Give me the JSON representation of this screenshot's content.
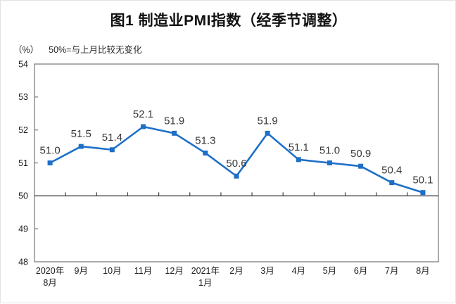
{
  "page": {
    "title": "图1 制造业PMI指数（经季节调整）"
  },
  "axis_note": {
    "unit": "（%）",
    "reference": "50%=与上月比较无变化"
  },
  "chart_data": {
    "type": "line",
    "title": "图1 制造业PMI指数（经季节调整）",
    "categories": [
      "2020年\n8月",
      "9月",
      "10月",
      "11月",
      "12月",
      "2021年\n1月",
      "2月",
      "3月",
      "4月",
      "5月",
      "6月",
      "7月",
      "8月"
    ],
    "series": [
      {
        "name": "制造业PMI指数",
        "values": [
          51.0,
          51.5,
          51.4,
          52.1,
          51.9,
          51.3,
          50.6,
          51.9,
          51.1,
          51.0,
          50.9,
          50.4,
          50.1
        ]
      }
    ],
    "xlabel": "",
    "ylabel": "（%）",
    "ylim": [
      48,
      54
    ],
    "ytick_step": 1,
    "reference_line": 50,
    "reference_note": "50%=与上月比较无变化",
    "grid": false,
    "legend_position": "none",
    "data_labels": true,
    "style": {
      "line_color": "#1e6fc8",
      "marker": "square",
      "marker_color": "#1e6fc8",
      "frame_color": "#7f7f7f",
      "reference_line_color": "#404040",
      "axis_text_color": "#1a1a1a",
      "data_label_color": "#383838"
    }
  }
}
